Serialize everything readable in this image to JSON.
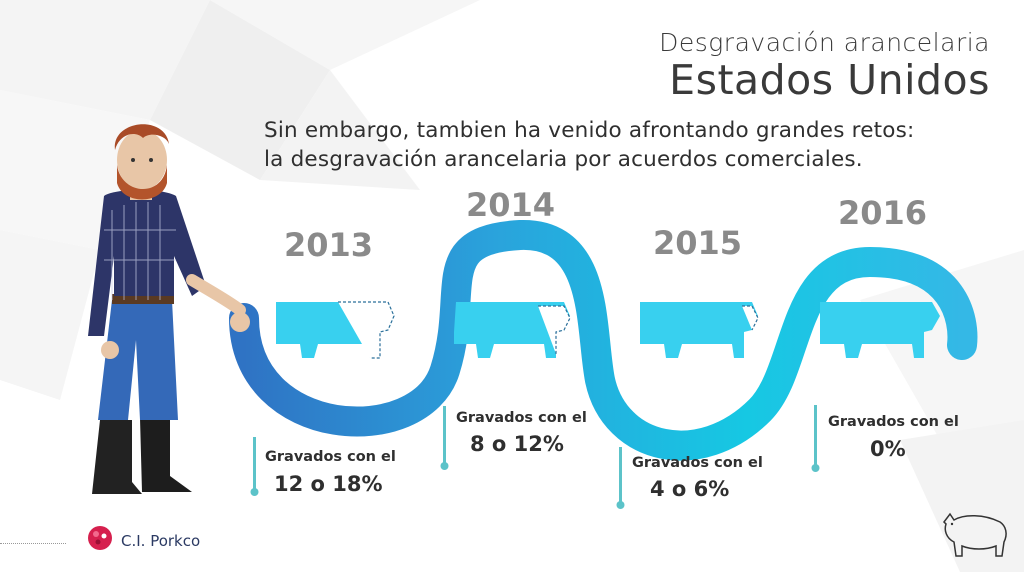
{
  "title": {
    "line1": "Desgravación arancelaria",
    "line2": "Estados Unidos"
  },
  "intro": {
    "line1": "Sin embargo, tambien ha venido afrontando grandes retos:",
    "line2": "la desgravación arancelaria por acuerdos comerciales."
  },
  "timeline": [
    {
      "year": "2013",
      "label": "Gravados con el",
      "value": "12 o 18%"
    },
    {
      "year": "2014",
      "label": "Gravados con el",
      "value": "8 o 12%"
    },
    {
      "year": "2015",
      "label": "Gravados con el",
      "value": "4 o 6%"
    },
    {
      "year": "2016",
      "label": "Gravados con el",
      "value": "0%"
    }
  ],
  "logo": {
    "text": "C.I. Porkco"
  },
  "colors": {
    "wave_start": "#2f73c4",
    "wave_end": "#1cc7e6",
    "pig": "#38d0ef",
    "year": "#8a8a8a",
    "marker": "#5cc3c9"
  }
}
